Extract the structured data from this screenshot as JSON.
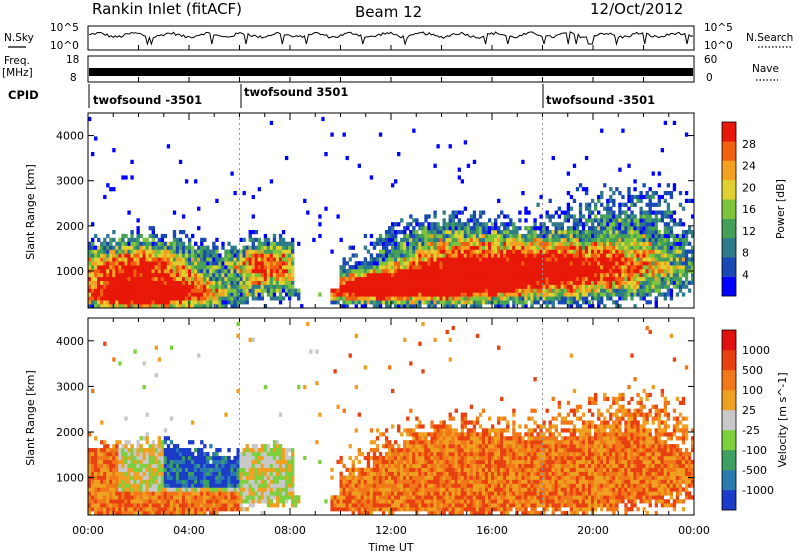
{
  "header": {
    "title": "Rankin Inlet (fitACF)",
    "beam": "Beam 12",
    "date": "12/Oct/2012"
  },
  "strips": {
    "nsky_label": "N.Sky",
    "nsearch_label": "N.Search",
    "freq_label_top": "Freq.",
    "freq_label_bottom": "[MHz]",
    "nave_label": "Nave",
    "cpid_label": "CPID",
    "noise_left_ticks": [
      "10^5",
      "10^0"
    ],
    "noise_right_ticks": [
      "10^5",
      "10^0"
    ],
    "freq_left_ticks": [
      "18",
      "8"
    ],
    "freq_right_ticks": [
      "60",
      "0"
    ],
    "cpid_segments": [
      {
        "label": "twofsound -3501",
        "start_hour": 0
      },
      {
        "label": "twofsound 3501",
        "start_hour": 6
      },
      {
        "label": "twofsound -3501",
        "start_hour": 18
      }
    ]
  },
  "chart_data": [
    {
      "type": "heatmap",
      "title": "",
      "xlabel": "Time UT",
      "ylabel": "Slant Range [km]",
      "x_ticks": [
        "00:00",
        "04:00",
        "08:00",
        "12:00",
        "16:00",
        "20:00",
        "00:00"
      ],
      "xlim_hours": [
        0,
        24
      ],
      "y_ticks": [
        1000,
        2000,
        3000,
        4000
      ],
      "ylim": [
        180,
        4500
      ],
      "colorbar_label": "Power [dB]",
      "colorbar_ticks": [
        "28",
        "24",
        "20",
        "16",
        "12",
        "8",
        "4"
      ],
      "colorbar_range": [
        0,
        32
      ],
      "colors": [
        "#0000ff",
        "#1848b4",
        "#2f7a8a",
        "#44a058",
        "#7cc43c",
        "#e0d030",
        "#f4a020",
        "#f06010",
        "#e81808"
      ]
    },
    {
      "type": "heatmap",
      "title": "",
      "xlabel": "Time UT",
      "ylabel": "Slant Range [km]",
      "x_ticks": [
        "00:00",
        "04:00",
        "08:00",
        "12:00",
        "16:00",
        "20:00",
        "00:00"
      ],
      "xlim_hours": [
        0,
        24
      ],
      "y_ticks": [
        1000,
        2000,
        3000,
        4000
      ],
      "ylim": [
        180,
        4500
      ],
      "colorbar_label": "Velocity [m s^-1]",
      "colorbar_ticks": [
        "1000",
        "500",
        "100",
        "25",
        "-25",
        "-100",
        "-500",
        "-1000"
      ],
      "colors": [
        "#1a3cc8",
        "#2a7ab0",
        "#3ca060",
        "#7cd03c",
        "#c8c8c8",
        "#f0a020",
        "#f07818",
        "#e84010",
        "#e01010"
      ]
    }
  ]
}
